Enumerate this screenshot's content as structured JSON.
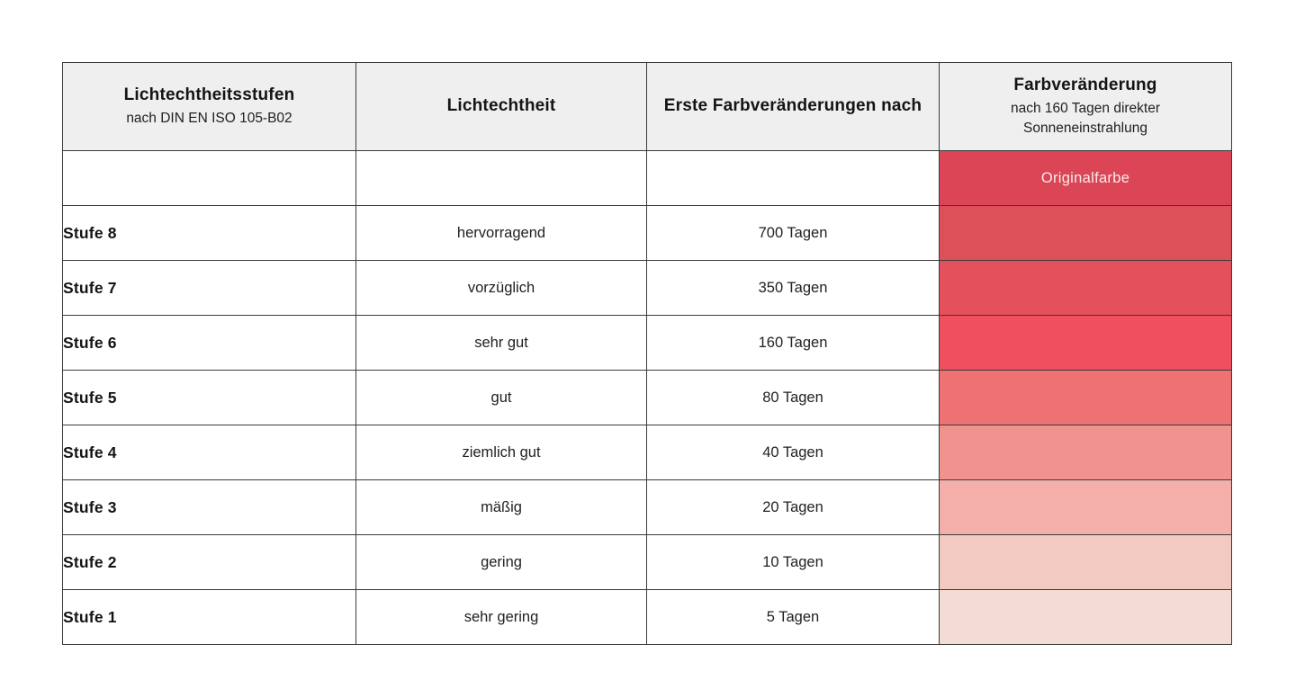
{
  "chart_data": {
    "type": "table",
    "title": "Lichtechtheitsstufen nach DIN EN ISO 105-B02",
    "header": [
      {
        "title": "Lichtechtheitsstufen",
        "subtitle": "nach DIN EN ISO 105-B02"
      },
      {
        "title": "Lichtechtheit",
        "subtitle": ""
      },
      {
        "title": "Erste Farbveränderungen nach",
        "subtitle": ""
      },
      {
        "title": "Farbveränderung",
        "subtitle": "nach 160 Tagen direkter Sonneneinstrahlung"
      }
    ],
    "rows": [
      {
        "stufe": "",
        "lichtechtheit": "",
        "erste_farbveraenderung": "",
        "swatch_label": "Originalfarbe",
        "swatch_color": "#db4556"
      },
      {
        "stufe": "Stufe 8",
        "lichtechtheit": "hervorragend",
        "erste_farbveraenderung": "700 Tagen",
        "swatch_label": "",
        "swatch_color": "#dd5059"
      },
      {
        "stufe": "Stufe 7",
        "lichtechtheit": "vorzüglich",
        "erste_farbveraenderung": "350 Tagen",
        "swatch_label": "",
        "swatch_color": "#e4515d"
      },
      {
        "stufe": "Stufe 6",
        "lichtechtheit": "sehr gut",
        "erste_farbveraenderung": "160 Tagen",
        "swatch_label": "",
        "swatch_color": "#ef4f5e"
      },
      {
        "stufe": "Stufe 5",
        "lichtechtheit": "gut",
        "erste_farbveraenderung": "80 Tagen",
        "swatch_label": "",
        "swatch_color": "#ee7173"
      },
      {
        "stufe": "Stufe 4",
        "lichtechtheit": "ziemlich gut",
        "erste_farbveraenderung": "40 Tagen",
        "swatch_label": "",
        "swatch_color": "#f0938f"
      },
      {
        "stufe": "Stufe 3",
        "lichtechtheit": "mäßig",
        "erste_farbveraenderung": "20 Tagen",
        "swatch_label": "",
        "swatch_color": "#f4afab"
      },
      {
        "stufe": "Stufe 2",
        "lichtechtheit": "gering",
        "erste_farbveraenderung": "10 Tagen",
        "swatch_label": "",
        "swatch_color": "#f3cac2"
      },
      {
        "stufe": "Stufe 1",
        "lichtechtheit": "sehr gering",
        "erste_farbveraenderung": "5 Tagen",
        "swatch_label": "",
        "swatch_color": "#f2dcd4"
      }
    ],
    "layout": {
      "grid": "off",
      "legend": "none"
    },
    "colors": {
      "header_background": "#efefef",
      "cell_border": "#3b3b3b",
      "swatch_label_text": "#f8ebeb",
      "body_text": "#212121",
      "heading_text": "#141414",
      "page_background": "#ffffff"
    }
  }
}
